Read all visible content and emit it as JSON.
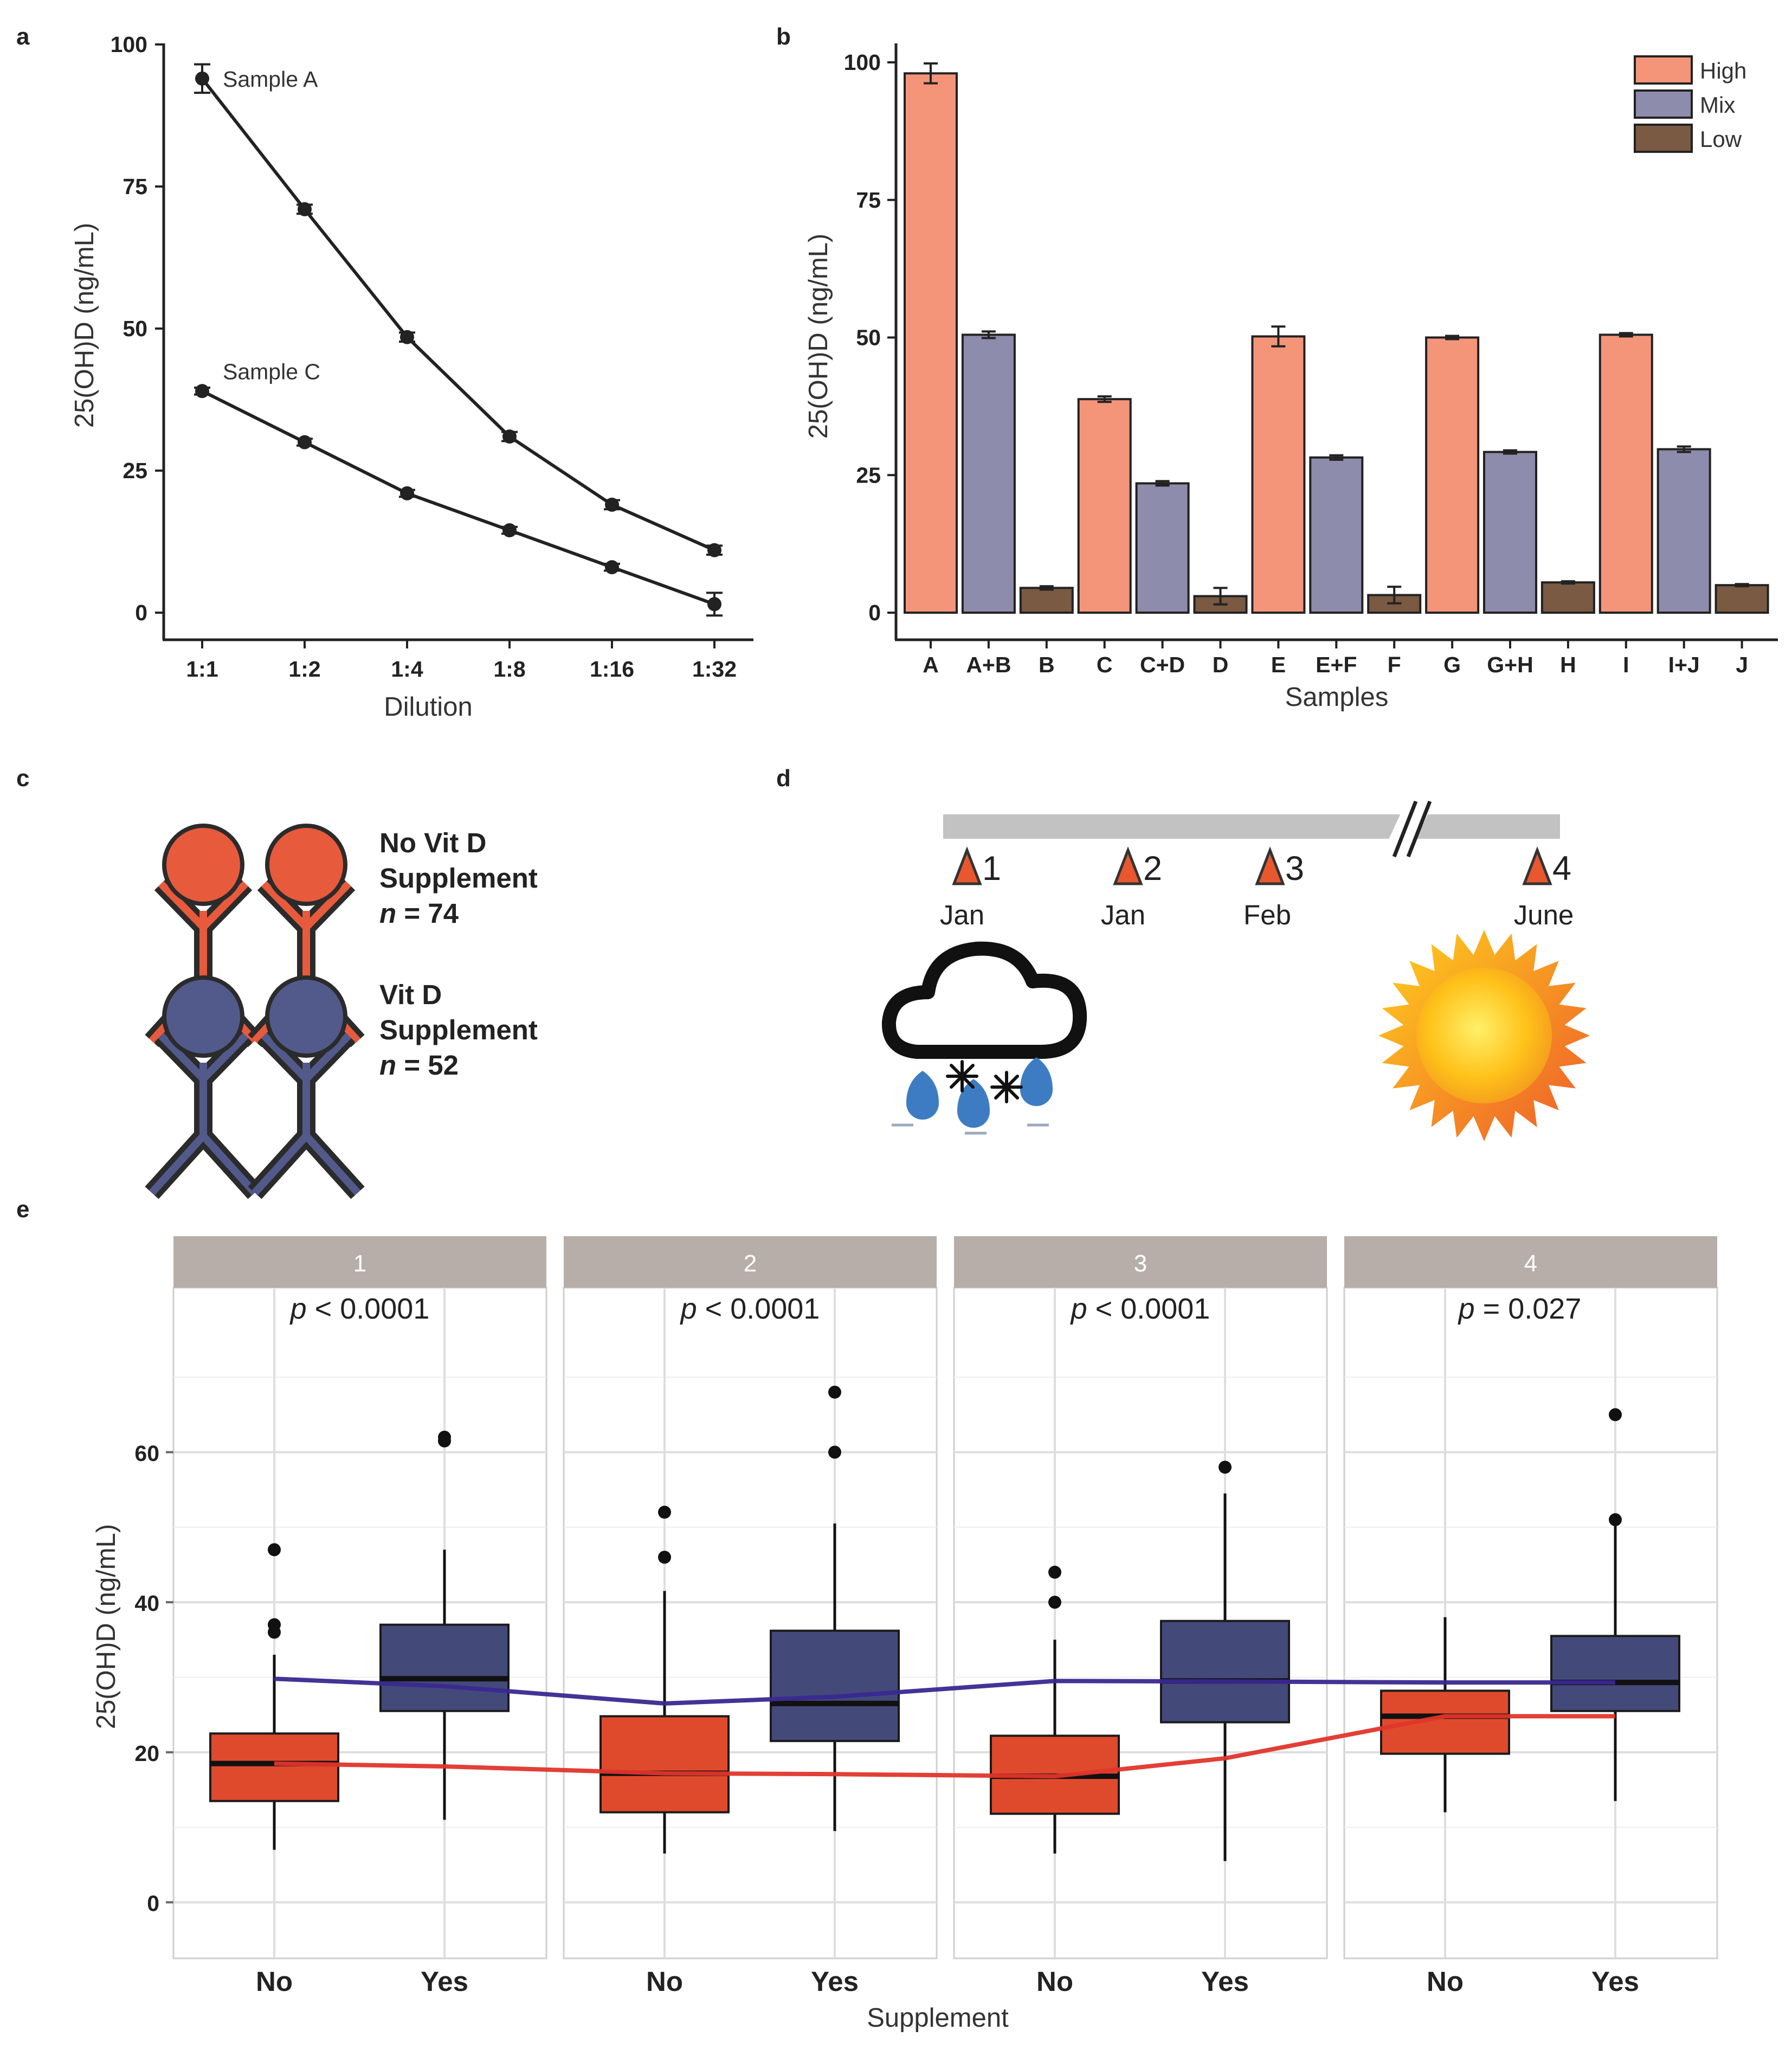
{
  "panel_labels": [
    "a",
    "b",
    "c",
    "d",
    "e"
  ],
  "colors": {
    "high": "#f4957a",
    "mix": "#8e8cac",
    "low": "#7a5a43",
    "no_supp": "#e04a2c",
    "yes_supp": "#434a7a",
    "strip": "#b7aeaa",
    "red_line": "#e0352b",
    "blue_line": "#3a2890"
  },
  "chart_data": [
    {
      "panel": "a",
      "type": "line",
      "categories": [
        "1:1",
        "1:2",
        "1:4",
        "1:8",
        "1:16",
        "1:32"
      ],
      "xlabel": "Dilution",
      "ylabel": "25(OH)D  (ng/mL)",
      "ylim": [
        0,
        100
      ],
      "yticks": [
        0,
        25,
        50,
        75,
        100
      ],
      "series": [
        {
          "name": "Sample A",
          "values": [
            94,
            71,
            48.5,
            31,
            19,
            11
          ],
          "err": [
            2.5,
            0.8,
            0.8,
            0.8,
            0.8,
            0.8
          ]
        },
        {
          "name": "Sample C",
          "values": [
            39,
            30,
            21,
            14.5,
            8,
            1.5
          ],
          "err": [
            0.6,
            0.6,
            0.6,
            0.6,
            0.6,
            2
          ]
        }
      ]
    },
    {
      "panel": "b",
      "type": "bar",
      "categories": [
        "A",
        "A+B",
        "B",
        "C",
        "C+D",
        "D",
        "E",
        "E+F",
        "F",
        "G",
        "G+H",
        "H",
        "I",
        "I+J",
        "J"
      ],
      "groups": [
        "High",
        "Mix",
        "Low",
        "High",
        "Mix",
        "Low",
        "High",
        "Mix",
        "Low",
        "High",
        "Mix",
        "Low",
        "High",
        "Mix",
        "Low"
      ],
      "values": [
        98,
        50.5,
        4.5,
        38.8,
        23.5,
        3,
        50.2,
        28.2,
        3.2,
        50,
        29.2,
        5.5,
        50.5,
        29.7,
        5
      ],
      "err": [
        1.8,
        0.6,
        0.3,
        0.5,
        0.4,
        1.5,
        1.8,
        0.4,
        1.5,
        0.3,
        0.3,
        0.2,
        0.3,
        0.5,
        0.2
      ],
      "legend": [
        "High",
        "Mix",
        "Low"
      ],
      "legend_position": "top-right",
      "xlabel": "Samples",
      "ylabel": "25(OH)D  (ng/mL)",
      "ylim": [
        0,
        100
      ],
      "yticks": [
        0,
        25,
        50,
        75,
        100
      ]
    },
    {
      "panel": "e",
      "type": "box",
      "facets": [
        "1",
        "2",
        "3",
        "4"
      ],
      "categories": [
        "No",
        "Yes"
      ],
      "xlabel": "Supplement",
      "ylabel": "25(OH)D  (ng/mL)",
      "ylim": [
        -3.5,
        82
      ],
      "yticks": [
        0,
        20,
        40,
        60
      ],
      "grid": true,
      "pvalues": [
        {
          "pre": "p",
          "text": " < 0.0001"
        },
        {
          "pre": "p",
          "text": " < 0.0001"
        },
        {
          "pre": "p",
          "text": " < 0.0001"
        },
        {
          "pre": "p",
          "text": " = 0.027"
        }
      ],
      "boxes": [
        [
          {
            "q1": 13.5,
            "median": 18.5,
            "q3": 22.5,
            "lo": 7,
            "hi": 33,
            "outliers": [
              36,
              37,
              47
            ]
          },
          {
            "q1": 25.5,
            "median": 29.8,
            "q3": 37,
            "lo": 11,
            "hi": 47,
            "outliers": [
              61.5,
              62
            ]
          }
        ],
        [
          {
            "q1": 12,
            "median": 17.2,
            "q3": 24.8,
            "lo": 6.5,
            "hi": 41.5,
            "outliers": [
              46,
              52
            ]
          },
          {
            "q1": 21.5,
            "median": 26.5,
            "q3": 36.2,
            "lo": 9.5,
            "hi": 50.5,
            "outliers": [
              60,
              68
            ]
          }
        ],
        [
          {
            "q1": 11.8,
            "median": 16.8,
            "q3": 22.2,
            "lo": 6.5,
            "hi": 35,
            "outliers": [
              40,
              44
            ]
          },
          {
            "q1": 24,
            "median": 29.5,
            "q3": 37.5,
            "lo": 5.5,
            "hi": 54.5,
            "outliers": [
              58
            ]
          }
        ],
        [
          {
            "q1": 19.8,
            "median": 24.8,
            "q3": 28.2,
            "lo": 12,
            "hi": 38,
            "outliers": []
          },
          {
            "q1": 25.5,
            "median": 29.3,
            "q3": 35.5,
            "lo": 13.5,
            "hi": 50.5,
            "outliers": [
              51,
              65
            ]
          }
        ]
      ]
    }
  ],
  "panel_c": {
    "groups": [
      {
        "line1": "No Vit D",
        "line2": "Supplement",
        "n_label": "n",
        "n_value": " = 74"
      },
      {
        "line1": "Vit D",
        "line2": "Supplement",
        "n_label": "n",
        "n_value": " = 52"
      }
    ]
  },
  "panel_d": {
    "timepoints": [
      {
        "num": "1",
        "month": "Jan"
      },
      {
        "num": "2",
        "month": "Jan"
      },
      {
        "num": "3",
        "month": "Feb"
      },
      {
        "num": "4",
        "month": "June"
      }
    ],
    "icons": [
      "rain-snow-cloud-icon",
      "sun-icon"
    ]
  }
}
